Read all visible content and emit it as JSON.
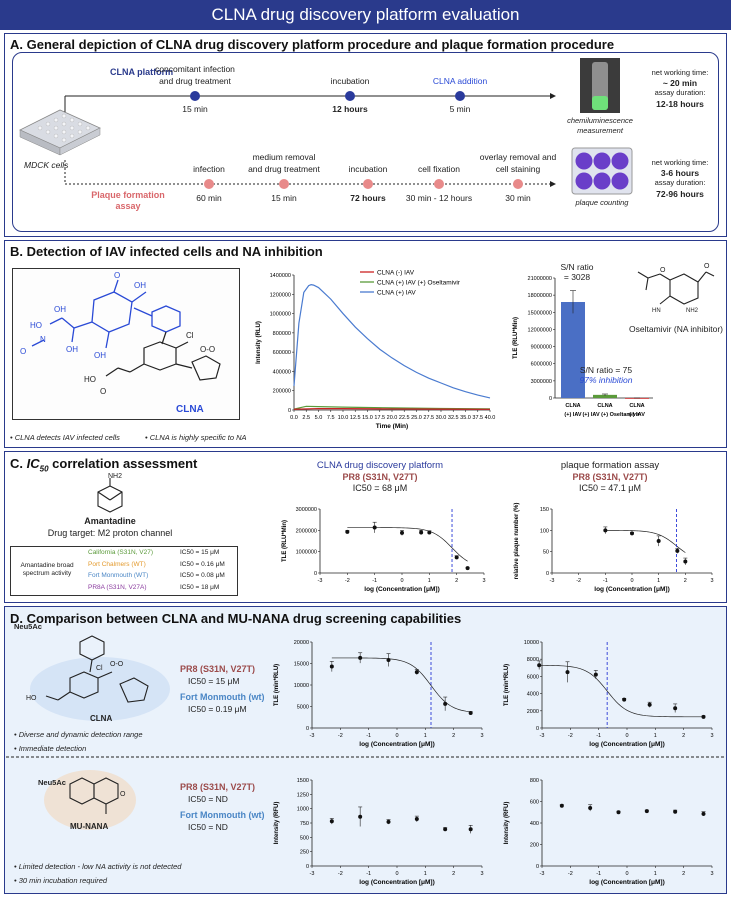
{
  "title": "CLNA drug discovery platform evaluation",
  "sectionA": {
    "title": "A. General depiction of CLNA drug discovery platform procedure and plaque formation procedure",
    "clna_label": "CLNA platform",
    "plaque_label_1": "Plaque formation",
    "plaque_label_2": "assay",
    "mdck": "MDCK cells",
    "clna_steps": [
      {
        "top1": "concomitant infection",
        "top2": "and drug treatment",
        "bottom": "15 min",
        "bold": false
      },
      {
        "top1": "",
        "top2": "incubation",
        "bottom": "12 hours",
        "bold": true
      },
      {
        "top1": "",
        "top2": "CLNA addition",
        "bottom": "5 min",
        "bold": false
      }
    ],
    "plaque_steps": [
      {
        "top1": "",
        "top2": "infection",
        "bottom": "60 min",
        "bold": false
      },
      {
        "top1": "medium removal",
        "top2": "and drug treatment",
        "bottom": "15 min",
        "bold": false
      },
      {
        "top1": "",
        "top2": "incubation",
        "bottom": "72 hours",
        "bold": true
      },
      {
        "top1": "",
        "top2": "cell fixation",
        "bottom": "30 min - 12 hours",
        "bold": false
      },
      {
        "top1": "overlay removal and",
        "top2": "cell staining",
        "bottom": "30 min",
        "bold": false
      }
    ],
    "chemi": "chemiluminescence",
    "measurement": "measurement",
    "plaque_counting": "plaque counting",
    "clna_net": "net working time:",
    "clna_net_val": "~ 20 min",
    "clna_assay": "assay duration:",
    "clna_assay_val": "12-18 hours",
    "pl_net": "net working time:",
    "pl_net_val": "3-6 hours",
    "pl_assay": "assay duration:",
    "pl_assay_val": "72-96 hours"
  },
  "sectionB": {
    "title": "B. Detection of IAV infected cells and NA inhibition",
    "clna_name": "CLNA",
    "bullet1": "• CLNA detects IAV infected cells",
    "bullet2": "• CLNA is highly specific to NA",
    "oseltamivir": "Oseltamivir (NA inhibitor)",
    "sn1": "S/N ratio",
    "sn1_val": "= 3028",
    "sn2": "S/N ratio = 75",
    "inhib": "97% inhibition",
    "legend": [
      "CLNA (-) IAV",
      "CLNA (+) IAV (+) Oseltamivir",
      "CLNA (+) IAV"
    ],
    "line_ylabel": "Intensity (RLU)",
    "line_xlabel": "Time (Min)",
    "line_yticks": [
      "1400000",
      "1200000",
      "1000000",
      "800000",
      "600000",
      "400000",
      "200000",
      "0"
    ],
    "line_xticks": [
      "0.0",
      "2.5",
      "5.0",
      "7.5",
      "10.0",
      "12.5",
      "15.0",
      "17.5",
      "20.0",
      "22.5",
      "25.0",
      "27.5",
      "30.0",
      "32.5",
      "35.0",
      "37.5",
      "40.0"
    ],
    "bar_ylabel": "TLE (RLU*Min)",
    "bar_yticks": [
      "21000000",
      "18000000",
      "15000000",
      "12000000",
      "9000000",
      "6000000",
      "3000000",
      "0"
    ],
    "bar_cats_1": [
      "CLNA",
      "CLNA",
      "CLNA"
    ],
    "bar_cats_2": [
      "(+) IAV",
      "(+) IAV (+) Oseltamivir",
      "(-) IAV"
    ]
  },
  "sectionC": {
    "title_c": "C.",
    "title_ic": "IC",
    "title_sub": "50",
    "title_rest": " correlation  assessment",
    "amantadine": "Amantadine",
    "target": "Drug target: M2 proton channel",
    "broad1": "Amantadine broad",
    "broad2": "spectrum activity",
    "strains": [
      {
        "name": "California (S31N, V27)",
        "ic": "IC50 = 15 μM",
        "color": "#5a9a3a"
      },
      {
        "name": "Port Chalmers (WT)",
        "ic": "IC50 = 0.16 μM",
        "color": "#e39a2d"
      },
      {
        "name": "Fort Monmouth (WT)",
        "ic": "IC50 = 0.08 μM",
        "color": "#4a86c5"
      },
      {
        "name": "PR8A (S31N, V27A)",
        "ic": "IC50 = 18 μM",
        "color": "#8a3b9e"
      }
    ],
    "chart1_title": "CLNA drug discovery platform",
    "chart1_strain": "PR8 (S31N, V27T)",
    "chart1_ic": "IC50 = 68 μM",
    "chart2_title": "plaque formation assay",
    "chart2_strain": "PR8 (S31N, V27T)",
    "chart2_ic": "IC50 = 47.1 μM",
    "c1_ylabel": "TLE (RLU*Min)",
    "c1_yticks": [
      "3000000",
      "2000000",
      "1000000",
      "0"
    ],
    "c2_ylabel": "relative plaque number (%)",
    "c2_yticks": [
      "150",
      "100",
      "50",
      "0"
    ],
    "xticks": [
      "-3",
      "-2",
      "-1",
      "0",
      "1",
      "2",
      "3"
    ],
    "xlabel": "log (Concentration [μM])"
  },
  "sectionD": {
    "title": "D. Comparison between CLNA and MU-NANA drug screening capabilities",
    "neu1": "Neu5Ac",
    "clna": "CLNA",
    "pr8": "PR8 (S31N, V27T)",
    "ic1": "IC50 = 15 μM",
    "fm": "Fort Monmouth (wt)",
    "ic2": "IC50 = 0.19 μM",
    "b1": "• Diverse and dynamic detection range",
    "b2": "• Immediate detection",
    "neu2": "Neu5Ac",
    "munana": "MU-NANA",
    "pr8b": "PR8 (S31N, V27T)",
    "ic3": "IC50 = ND",
    "fmb": "Fort Monmouth (wt)",
    "ic4": "IC50 = ND",
    "b3": "• Limited detection - low NA activity is not detected",
    "b4": "• 30 min incubation required",
    "d1_ylabel": "TLE (min*RLU)",
    "d1_yticks": [
      "20000",
      "15000",
      "10000",
      "5000",
      "0"
    ],
    "d2_ylabel": "TLE (min*RLU)",
    "d2_yticks": [
      "10000",
      "8000",
      "6000",
      "4000",
      "2000",
      "0"
    ],
    "d3_ylabel": "Intensity (RFU)",
    "d3_yticks": [
      "1500",
      "1250",
      "1000",
      "750",
      "500",
      "250",
      "0"
    ],
    "d4_ylabel": "Intensity (RFU)",
    "d4_yticks": [
      "800",
      "600",
      "400",
      "200",
      "0"
    ],
    "xticks": [
      "-3",
      "-2",
      "-1",
      "0",
      "1",
      "2",
      "3"
    ],
    "xlabel": "log (Concentration [μM])"
  },
  "chart_data": [
    {
      "type": "line",
      "title": "",
      "xlabel": "Time (Min)",
      "ylabel": "Intensity (RLU)",
      "xlim": [
        0,
        40
      ],
      "ylim": [
        0,
        1400000
      ],
      "series": [
        {
          "name": "CLNA (+) IAV",
          "color": "#4a7bd0",
          "x": [
            0,
            1,
            2,
            3,
            3.5,
            4,
            5,
            7.5,
            10,
            12.5,
            15,
            17.5,
            20,
            22.5,
            25,
            27.5,
            30,
            32.5,
            35,
            37.5,
            40
          ],
          "values": [
            250000,
            900000,
            1220000,
            1290000,
            1300000,
            1295000,
            1270000,
            1150000,
            1000000,
            860000,
            740000,
            630000,
            540000,
            460000,
            390000,
            330000,
            280000,
            230000,
            190000,
            155000,
            125000
          ]
        },
        {
          "name": "CLNA (+) IAV (+) Oseltamivir",
          "color": "#5a9a3a",
          "x": [
            0,
            2.5,
            5,
            10,
            20,
            30,
            40
          ],
          "values": [
            10000,
            38000,
            35000,
            30000,
            22000,
            16000,
            12000
          ]
        },
        {
          "name": "CLNA (-) IAV",
          "color": "#cc2222",
          "x": [
            0,
            5,
            10,
            20,
            30,
            40
          ],
          "values": [
            8000,
            15000,
            14000,
            11000,
            9000,
            7000
          ]
        }
      ]
    },
    {
      "type": "bar",
      "categories": [
        "CLNA (+) IAV",
        "CLNA (+) IAV (+) Oseltamivir",
        "CLNA (-) IAV"
      ],
      "values": [
        16800000,
        550000,
        6000
      ],
      "errors": [
        2000000,
        150000,
        3000
      ],
      "ylim": [
        0,
        21000000
      ],
      "ylabel": "TLE (RLU*Min)",
      "colors": [
        "#4a6fc5",
        "#5a9a3a",
        "#cc2222"
      ]
    },
    {
      "type": "scatter",
      "title": "CLNA drug discovery platform",
      "xlabel": "log (Concentration [μM])",
      "ylabel": "TLE (RLU*Min)",
      "xlim": [
        -3,
        3
      ],
      "ylim": [
        0,
        3000000
      ],
      "x": [
        -2,
        -1,
        0,
        0.7,
        1,
        2,
        2.4
      ],
      "values": [
        1930000,
        2130000,
        1880000,
        1900000,
        1900000,
        730000,
        230000
      ],
      "errors": [
        60000,
        250000,
        120000,
        100000,
        80000,
        80000,
        40000
      ],
      "ic50_log": 1.83
    },
    {
      "type": "scatter",
      "title": "plaque formation assay",
      "xlabel": "log (Concentration [μM])",
      "ylabel": "relative plaque number (%)",
      "xlim": [
        -3,
        3
      ],
      "ylim": [
        0,
        150
      ],
      "x": [
        -1,
        0,
        1,
        1.7,
        2
      ],
      "values": [
        100,
        93,
        75,
        52,
        27
      ],
      "errors": [
        8,
        2,
        12,
        6,
        8
      ],
      "ic50_log": 1.67
    },
    {
      "type": "scatter",
      "title": "CLNA",
      "xlabel": "log (Concentration [μM])",
      "ylabel": "TLE (min*RLU)",
      "xlim": [
        -3,
        3
      ],
      "ylim": [
        0,
        20000
      ],
      "x": [
        -2.3,
        -1.3,
        -0.3,
        0.7,
        1.7,
        2.6
      ],
      "values": [
        14300,
        16300,
        15800,
        13000,
        5600,
        3500
      ],
      "errors": [
        1200,
        1200,
        1500,
        600,
        1600,
        300
      ],
      "ic50_log": 1.2
    },
    {
      "type": "scatter",
      "title": "CLNA",
      "xlabel": "log (Concentration [μM])",
      "ylabel": "TLE (min*RLU)",
      "xlim": [
        -3,
        3
      ],
      "ylim": [
        0,
        10000
      ],
      "x": [
        -3.1,
        -2.1,
        -1.1,
        -0.1,
        0.8,
        1.7,
        2.7
      ],
      "values": [
        7300,
        6500,
        6200,
        3300,
        2700,
        2300,
        1300
      ],
      "errors": [
        500,
        1200,
        500,
        150,
        300,
        500,
        100
      ],
      "ic50_log": -0.7
    },
    {
      "type": "scatter",
      "title": "MU-NANA",
      "xlabel": "log (Concentration [μM])",
      "ylabel": "Intensity (RFU)",
      "xlim": [
        -3,
        3
      ],
      "ylim": [
        0,
        1500
      ],
      "x": [
        -2.3,
        -1.3,
        -0.3,
        0.7,
        1.7,
        2.6
      ],
      "values": [
        780,
        860,
        770,
        820,
        640,
        640
      ],
      "errors": [
        50,
        170,
        40,
        50,
        30,
        70
      ]
    },
    {
      "type": "scatter",
      "title": "MU-NANA",
      "xlabel": "log (Concentration [μM])",
      "ylabel": "Intensity (RFU)",
      "xlim": [
        -3,
        3
      ],
      "ylim": [
        0,
        800
      ],
      "x": [
        -2.3,
        -1.3,
        -0.3,
        0.7,
        1.7,
        2.7
      ],
      "values": [
        560,
        540,
        500,
        510,
        505,
        485
      ],
      "errors": [
        10,
        30,
        10,
        10,
        15,
        20
      ]
    }
  ]
}
